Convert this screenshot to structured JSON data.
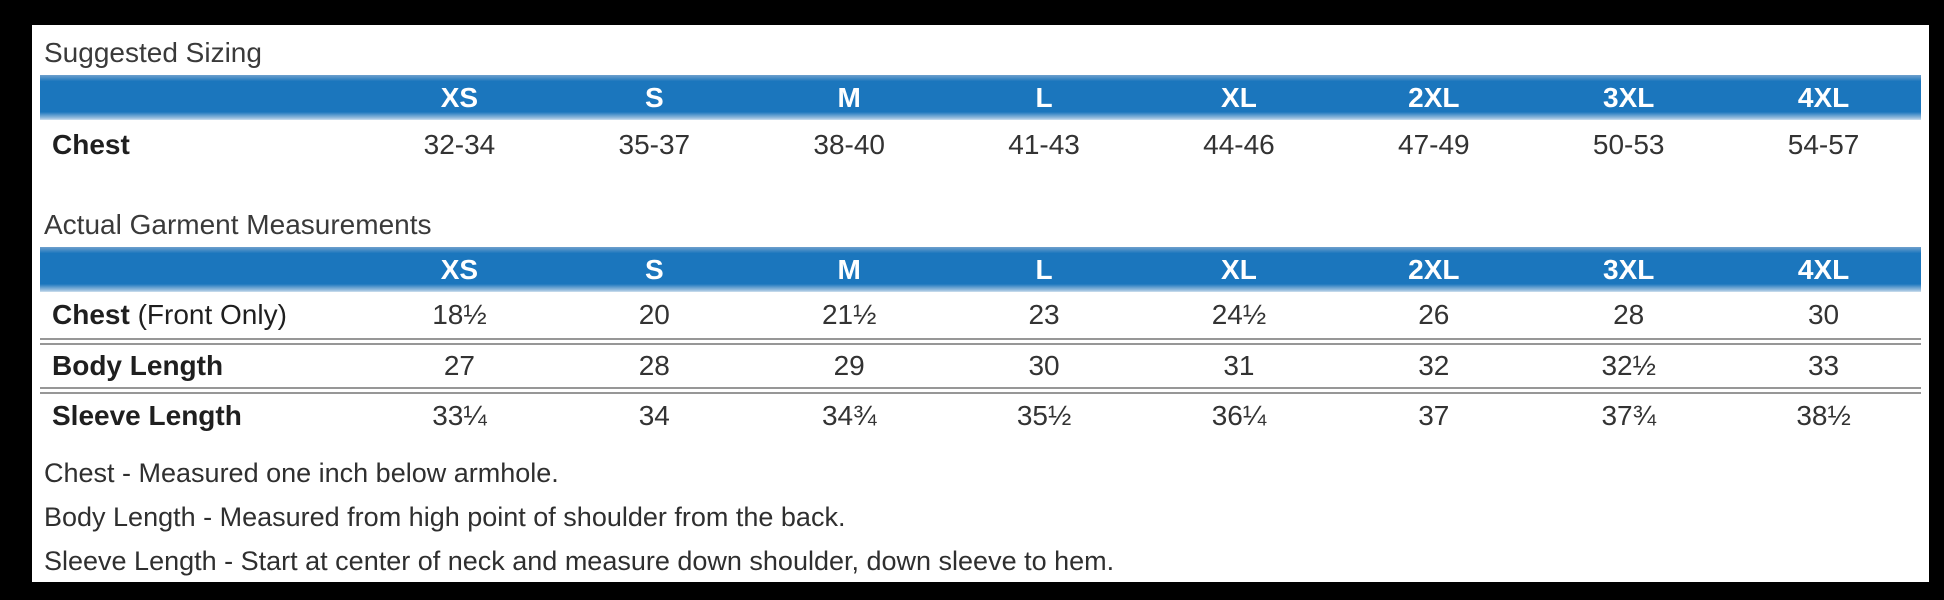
{
  "colors": {
    "header_blue": "#1b76bd",
    "header_text": "#ffffff",
    "body_text": "#333333",
    "divider_gray": "#979797",
    "frame_black": "#000000",
    "content_white": "#ffffff"
  },
  "sizes": [
    "XS",
    "S",
    "M",
    "L",
    "XL",
    "2XL",
    "3XL",
    "4XL"
  ],
  "suggested_sizing": {
    "title": "Suggested Sizing",
    "rows": [
      {
        "label": "Chest",
        "label_suffix": "",
        "values": [
          "32-34",
          "35-37",
          "38-40",
          "41-43",
          "44-46",
          "47-49",
          "50-53",
          "54-57"
        ]
      }
    ]
  },
  "garment_measurements": {
    "title": "Actual Garment Measurements",
    "rows": [
      {
        "label": "Chest",
        "label_suffix": " (Front Only)",
        "values": [
          "18½",
          "20",
          "21½",
          "23",
          "24½",
          "26",
          "28",
          "30"
        ]
      },
      {
        "label": "Body Length",
        "label_suffix": "",
        "values": [
          "27",
          "28",
          "29",
          "30",
          "31",
          "32",
          "32½",
          "33"
        ]
      },
      {
        "label": "Sleeve Length",
        "label_suffix": "",
        "values": [
          "33¼",
          "34",
          "34¾",
          "35½",
          "36¼",
          "37",
          "37¾",
          "38½"
        ]
      }
    ]
  },
  "notes": [
    "Chest - Measured one inch below armhole.",
    "Body Length - Measured from high point of shoulder from the back.",
    "Sleeve Length - Start at center of neck and measure down shoulder, down sleeve to hem."
  ]
}
